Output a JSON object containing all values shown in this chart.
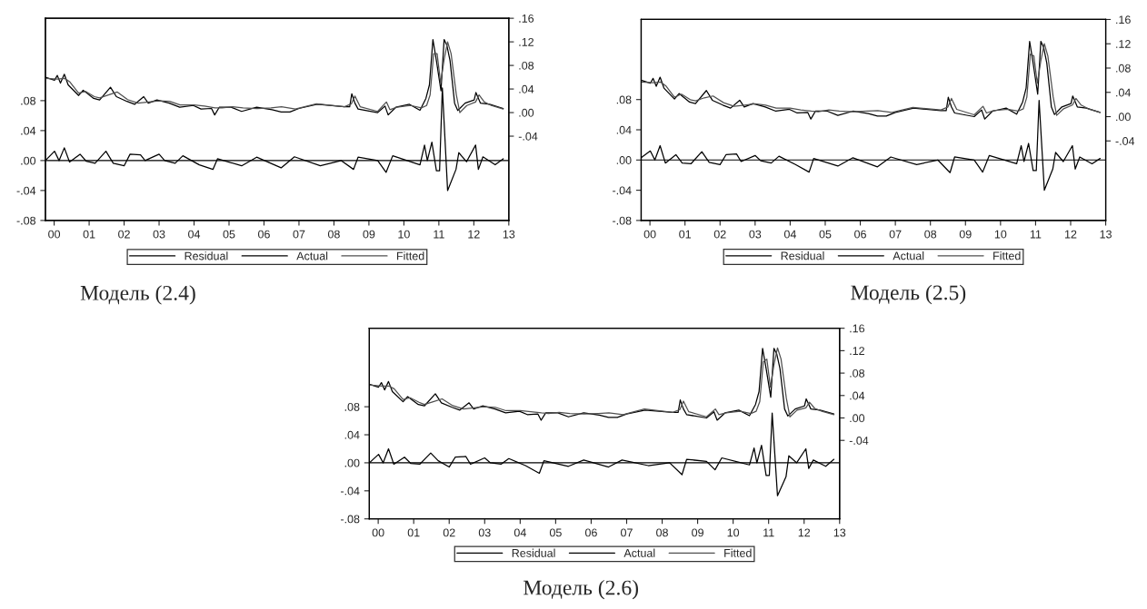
{
  "chart_data": [
    {
      "type": "line",
      "annotations": [
        "Модель (2.4)"
      ],
      "legend": "bottom",
      "grid": false,
      "marker": "none",
      "line_style": "solid",
      "xlim": [
        1999.75,
        2013.0
      ],
      "xticks": [
        {
          "value": 2000,
          "label": "00"
        },
        {
          "value": 2001,
          "label": "01"
        },
        {
          "value": 2002,
          "label": "02"
        },
        {
          "value": 2003,
          "label": "03"
        },
        {
          "value": 2004,
          "label": "04"
        },
        {
          "value": 2005,
          "label": "05"
        },
        {
          "value": 2006,
          "label": "06"
        },
        {
          "value": 2007,
          "label": "07"
        },
        {
          "value": 2008,
          "label": "08"
        },
        {
          "value": 2009,
          "label": "09"
        },
        {
          "value": 2010,
          "label": "10"
        },
        {
          "value": 2011,
          "label": "11"
        },
        {
          "value": 2012,
          "label": "12"
        },
        {
          "value": 2013,
          "label": "13"
        }
      ],
      "ylim": [
        -0.08,
        0.19
      ],
      "yticks": [
        {
          "value": -0.08,
          "label": "-.08"
        },
        {
          "value": -0.04,
          "label": "-.04"
        },
        {
          "value": 0,
          "label": ".00"
        },
        {
          "value": 0.04,
          "label": ".04"
        },
        {
          "value": 0.08,
          "label": ".08"
        }
      ],
      "y2lim": [
        -0.183,
        0.16
      ],
      "y2ticks": [
        {
          "value": -0.04,
          "label": "-.04"
        },
        {
          "value": 0,
          "label": ".00"
        },
        {
          "value": 0.04,
          "label": ".04"
        },
        {
          "value": 0.08,
          "label": ".08"
        },
        {
          "value": 0.12,
          "label": ".12"
        },
        {
          "value": 0.16,
          "label": ".16"
        }
      ],
      "ref_lines": [
        {
          "axis": "y",
          "value": 0
        }
      ],
      "series": [
        {
          "name": "Residual",
          "color": "#000000",
          "axis": "y",
          "x": [
            1999.75,
            2000.01,
            2000.14,
            2000.29,
            2000.44,
            2000.74,
            2000.92,
            2001.17,
            2001.48,
            2001.69,
            2002.0,
            2002.17,
            2002.47,
            2002.6,
            2003.0,
            2003.16,
            2003.46,
            2003.68,
            2004.15,
            2004.54,
            2004.67,
            2005.36,
            2005.79,
            2006.49,
            2006.87,
            2007.61,
            2008.21,
            2008.56,
            2008.69,
            2009.25,
            2009.49,
            2009.68,
            2010.46,
            2010.59,
            2010.67,
            2010.8,
            2010.93,
            2011.02,
            2011.1,
            2011.25,
            2011.49,
            2011.57,
            2011.79,
            2012.05,
            2012.13,
            2012.26,
            2012.61,
            2012.84
          ],
          "values": [
            0.0,
            0.0125,
            0.0,
            0.017,
            -0.002,
            0.0085,
            -0.001,
            -0.0036,
            0.0125,
            -0.0036,
            -0.007,
            0.0085,
            0.0076,
            0.0,
            0.0085,
            0.0,
            -0.0036,
            0.0064,
            -0.0057,
            -0.0118,
            0.0024,
            -0.007,
            0.0045,
            -0.0097,
            0.005,
            -0.007,
            0.0,
            -0.0118,
            0.0045,
            0.0,
            -0.0158,
            0.0064,
            -0.0057,
            0.0206,
            0.0,
            0.0246,
            -0.0137,
            -0.0137,
            0.097,
            -0.04,
            -0.0118,
            0.0105,
            -0.0016,
            0.0206,
            -0.0118,
            0.005,
            -0.0057,
            0.0024
          ]
        },
        {
          "name": "Actual",
          "color": "#000000",
          "axis": "y2",
          "x": [
            1999.75,
            2000.01,
            2000.09,
            2000.18,
            2000.29,
            2000.4,
            2000.7,
            2000.83,
            2001.13,
            2001.3,
            2001.61,
            2001.78,
            2002.08,
            2002.3,
            2002.56,
            2002.69,
            2002.94,
            2003.29,
            2003.59,
            2003.98,
            2004.2,
            2004.5,
            2004.59,
            2004.72,
            2005.06,
            2005.36,
            2005.79,
            2006.23,
            2006.49,
            2006.74,
            2007.0,
            2007.52,
            2008.3,
            2008.45,
            2008.51,
            2008.6,
            2008.69,
            2009.25,
            2009.46,
            2009.55,
            2009.77,
            2010.16,
            2010.46,
            2010.63,
            2010.73,
            2010.83,
            2010.93,
            2011.06,
            2011.15,
            2011.23,
            2011.32,
            2011.45,
            2011.54,
            2011.75,
            2012.01,
            2012.06,
            2012.19,
            2012.45,
            2012.84
          ],
          "values": [
            0.06,
            0.055,
            0.063,
            0.05,
            0.065,
            0.047,
            0.029,
            0.038,
            0.024,
            0.0215,
            0.043,
            0.027,
            0.019,
            0.014,
            0.027,
            0.016,
            0.0215,
            0.016,
            0.009,
            0.012,
            0.006,
            0.007,
            -0.004,
            0.009,
            0.009,
            0.002,
            0.009,
            0.005,
            0.001,
            0.001,
            0.007,
            0.014,
            0.01,
            0.01,
            0.032,
            0.016,
            0.006,
            0.0,
            0.011,
            -0.004,
            0.009,
            0.014,
            0.004,
            0.024,
            0.047,
            0.124,
            0.088,
            0.037,
            0.124,
            0.114,
            0.088,
            0.016,
            0.0035,
            0.016,
            0.0215,
            0.034,
            0.016,
            0.014,
            0.007
          ]
        },
        {
          "name": "Fitted",
          "color": "#505050",
          "axis": "y2",
          "x": [
            1999.75,
            2000.1,
            2000.3,
            2000.45,
            2000.7,
            2000.9,
            2001.15,
            2001.3,
            2001.55,
            2001.8,
            2002.1,
            2002.4,
            2002.7,
            2003.0,
            2003.3,
            2003.6,
            2004.0,
            2004.3,
            2004.6,
            2004.8,
            2005.1,
            2005.4,
            2005.8,
            2006.2,
            2006.5,
            2006.9,
            2007.5,
            2008.3,
            2008.5,
            2008.6,
            2008.75,
            2009.25,
            2009.5,
            2009.6,
            2009.8,
            2010.2,
            2010.5,
            2010.65,
            2010.75,
            2010.85,
            2010.95,
            2011.05,
            2011.15,
            2011.25,
            2011.35,
            2011.5,
            2011.6,
            2011.8,
            2012.05,
            2012.15,
            2012.3,
            2012.5,
            2012.84
          ],
          "values": [
            0.058,
            0.057,
            0.058,
            0.052,
            0.033,
            0.036,
            0.027,
            0.025,
            0.03,
            0.035,
            0.022,
            0.016,
            0.018,
            0.02,
            0.019,
            0.013,
            0.013,
            0.011,
            0.008,
            0.008,
            0.01,
            0.008,
            0.007,
            0.008,
            0.01,
            0.006,
            0.015,
            0.01,
            0.015,
            0.028,
            0.01,
            0.002,
            0.018,
            0.005,
            0.009,
            0.012,
            0.008,
            0.012,
            0.03,
            0.1,
            0.1,
            0.05,
            0.09,
            0.12,
            0.1,
            0.03,
            0.0,
            0.012,
            0.018,
            0.03,
            0.018,
            0.012,
            0.006
          ]
        }
      ]
    },
    {
      "type": "line",
      "annotations": [
        "Модель (2.5)"
      ],
      "legend": "bottom",
      "grid": false,
      "marker": "none",
      "line_style": "solid",
      "xlim": [
        1999.75,
        2013.0
      ],
      "xticks": [
        {
          "value": 2000,
          "label": "00"
        },
        {
          "value": 2001,
          "label": "01"
        },
        {
          "value": 2002,
          "label": "02"
        },
        {
          "value": 2003,
          "label": "03"
        },
        {
          "value": 2004,
          "label": "04"
        },
        {
          "value": 2005,
          "label": "05"
        },
        {
          "value": 2006,
          "label": "06"
        },
        {
          "value": 2007,
          "label": "07"
        },
        {
          "value": 2008,
          "label": "08"
        },
        {
          "value": 2009,
          "label": "09"
        },
        {
          "value": 2010,
          "label": "10"
        },
        {
          "value": 2011,
          "label": "11"
        },
        {
          "value": 2012,
          "label": "12"
        },
        {
          "value": 2013,
          "label": "13"
        }
      ],
      "ylim": [
        -0.08,
        0.186
      ],
      "yticks": [
        {
          "value": -0.08,
          "label": "-.08"
        },
        {
          "value": -0.04,
          "label": "-.04"
        },
        {
          "value": 0,
          "label": ".00"
        },
        {
          "value": 0.04,
          "label": ".04"
        },
        {
          "value": 0.08,
          "label": ".08"
        }
      ],
      "y2lim": [
        -0.171,
        0.16
      ],
      "y2ticks": [
        {
          "value": -0.04,
          "label": "-.04"
        },
        {
          "value": 0,
          "label": ".00"
        },
        {
          "value": 0.04,
          "label": ".04"
        },
        {
          "value": 0.08,
          "label": ".08"
        },
        {
          "value": 0.12,
          "label": ".12"
        },
        {
          "value": 0.16,
          "label": ".16"
        }
      ],
      "ref_lines": [
        {
          "axis": "y",
          "value": 0
        }
      ],
      "series": [
        {
          "name": "Residual",
          "color": "#000000",
          "axis": "y",
          "x": [
            1999.75,
            2000.01,
            2000.14,
            2000.29,
            2000.44,
            2000.74,
            2000.92,
            2001.17,
            2001.48,
            2001.69,
            2002.0,
            2002.17,
            2002.47,
            2002.6,
            2003.0,
            2003.16,
            2003.46,
            2003.68,
            2004.15,
            2004.54,
            2004.67,
            2005.36,
            2005.79,
            2006.49,
            2006.87,
            2007.61,
            2008.21,
            2008.56,
            2008.69,
            2009.25,
            2009.49,
            2009.68,
            2010.46,
            2010.59,
            2010.67,
            2010.8,
            2010.93,
            2011.02,
            2011.1,
            2011.25,
            2011.49,
            2011.57,
            2011.79,
            2012.05,
            2012.13,
            2012.26,
            2012.61,
            2012.84
          ],
          "values": [
            0.003,
            0.012,
            0.0,
            0.019,
            -0.004,
            0.007,
            -0.004,
            -0.005,
            0.011,
            -0.003,
            -0.006,
            0.007,
            0.008,
            -0.002,
            0.006,
            -0.001,
            -0.004,
            0.005,
            -0.006,
            -0.016,
            0.002,
            -0.008,
            0.003,
            -0.009,
            0.004,
            -0.006,
            0.0,
            -0.0167,
            0.004,
            0.0,
            -0.016,
            0.006,
            -0.005,
            0.019,
            -0.002,
            0.022,
            -0.014,
            -0.014,
            0.079,
            -0.04,
            -0.012,
            0.01,
            -0.002,
            0.019,
            -0.012,
            0.004,
            -0.005,
            0.002
          ]
        },
        {
          "name": "Actual",
          "color": "#000000",
          "axis": "y2",
          "x": [
            1999.75,
            2000.01,
            2000.09,
            2000.18,
            2000.29,
            2000.4,
            2000.7,
            2000.83,
            2001.13,
            2001.3,
            2001.61,
            2001.78,
            2002.08,
            2002.3,
            2002.56,
            2002.69,
            2002.94,
            2003.29,
            2003.59,
            2003.98,
            2004.2,
            2004.5,
            2004.59,
            2004.72,
            2005.06,
            2005.36,
            2005.79,
            2006.23,
            2006.49,
            2006.74,
            2007.0,
            2007.52,
            2008.3,
            2008.45,
            2008.51,
            2008.6,
            2008.69,
            2009.25,
            2009.46,
            2009.55,
            2009.77,
            2010.16,
            2010.46,
            2010.63,
            2010.73,
            2010.83,
            2010.93,
            2011.06,
            2011.15,
            2011.23,
            2011.32,
            2011.45,
            2011.54,
            2011.75,
            2012.01,
            2012.06,
            2012.19,
            2012.45,
            2012.84
          ],
          "values": [
            0.06,
            0.055,
            0.063,
            0.05,
            0.065,
            0.047,
            0.029,
            0.038,
            0.024,
            0.0215,
            0.043,
            0.027,
            0.019,
            0.014,
            0.027,
            0.016,
            0.0215,
            0.016,
            0.009,
            0.012,
            0.006,
            0.007,
            -0.004,
            0.009,
            0.009,
            0.002,
            0.009,
            0.005,
            0.001,
            0.001,
            0.007,
            0.014,
            0.01,
            0.01,
            0.032,
            0.016,
            0.006,
            0.0,
            0.011,
            -0.004,
            0.009,
            0.014,
            0.004,
            0.024,
            0.047,
            0.124,
            0.088,
            0.037,
            0.124,
            0.114,
            0.088,
            0.016,
            0.0035,
            0.016,
            0.0215,
            0.034,
            0.016,
            0.014,
            0.007
          ]
        },
        {
          "name": "Fitted",
          "color": "#505050",
          "axis": "y2",
          "x": [
            1999.75,
            2000.1,
            2000.3,
            2000.45,
            2000.7,
            2000.9,
            2001.15,
            2001.3,
            2001.55,
            2001.8,
            2002.1,
            2002.4,
            2002.7,
            2003.0,
            2003.3,
            2003.6,
            2004.0,
            2004.3,
            2004.6,
            2004.8,
            2005.1,
            2005.4,
            2005.8,
            2006.2,
            2006.5,
            2006.9,
            2007.5,
            2008.3,
            2008.5,
            2008.6,
            2008.75,
            2009.25,
            2009.5,
            2009.6,
            2009.8,
            2010.2,
            2010.5,
            2010.65,
            2010.75,
            2010.85,
            2010.95,
            2011.05,
            2011.15,
            2011.25,
            2011.35,
            2011.5,
            2011.6,
            2011.8,
            2012.05,
            2012.15,
            2012.3,
            2012.5,
            2012.84
          ],
          "values": [
            0.057,
            0.056,
            0.057,
            0.051,
            0.032,
            0.037,
            0.028,
            0.026,
            0.031,
            0.034,
            0.023,
            0.017,
            0.019,
            0.021,
            0.019,
            0.014,
            0.014,
            0.011,
            0.009,
            0.008,
            0.011,
            0.009,
            0.008,
            0.009,
            0.01,
            0.007,
            0.015,
            0.011,
            0.016,
            0.03,
            0.012,
            0.003,
            0.017,
            0.006,
            0.01,
            0.012,
            0.009,
            0.013,
            0.032,
            0.103,
            0.1,
            0.055,
            0.092,
            0.12,
            0.1,
            0.033,
            0.002,
            0.013,
            0.019,
            0.03,
            0.019,
            0.013,
            0.007
          ]
        }
      ]
    },
    {
      "type": "line",
      "annotations": [
        "Модель (2.6)"
      ],
      "legend": "bottom",
      "grid": false,
      "marker": "none",
      "line_style": "solid",
      "xlim": [
        1999.75,
        2013.0
      ],
      "xticks": [
        {
          "value": 2000,
          "label": "00"
        },
        {
          "value": 2001,
          "label": "01"
        },
        {
          "value": 2002,
          "label": "02"
        },
        {
          "value": 2003,
          "label": "03"
        },
        {
          "value": 2004,
          "label": "04"
        },
        {
          "value": 2005,
          "label": "05"
        },
        {
          "value": 2006,
          "label": "06"
        },
        {
          "value": 2007,
          "label": "07"
        },
        {
          "value": 2008,
          "label": "08"
        },
        {
          "value": 2009,
          "label": "09"
        },
        {
          "value": 2010,
          "label": "10"
        },
        {
          "value": 2011,
          "label": "11"
        },
        {
          "value": 2012,
          "label": "12"
        },
        {
          "value": 2013,
          "label": "13"
        }
      ],
      "ylim": [
        -0.08,
        0.192
      ],
      "yticks": [
        {
          "value": -0.08,
          "label": "-.08"
        },
        {
          "value": -0.04,
          "label": "-.04"
        },
        {
          "value": 0,
          "label": ".00"
        },
        {
          "value": 0.04,
          "label": ".04"
        },
        {
          "value": 0.08,
          "label": ".08"
        }
      ],
      "y2lim": [
        -0.18,
        0.16
      ],
      "y2ticks": [
        {
          "value": -0.04,
          "label": "-.04"
        },
        {
          "value": 0,
          "label": ".00"
        },
        {
          "value": 0.04,
          "label": ".04"
        },
        {
          "value": 0.08,
          "label": ".08"
        },
        {
          "value": 0.12,
          "label": ".12"
        },
        {
          "value": 0.16,
          "label": ".16"
        }
      ],
      "ref_lines": [
        {
          "axis": "y",
          "value": 0
        }
      ],
      "series": [
        {
          "name": "Residual",
          "color": "#000000",
          "axis": "y",
          "x": [
            1999.75,
            2000.01,
            2000.14,
            2000.29,
            2000.44,
            2000.74,
            2000.92,
            2001.17,
            2001.48,
            2001.69,
            2002.0,
            2002.17,
            2002.47,
            2002.6,
            2003.0,
            2003.16,
            2003.46,
            2003.68,
            2004.15,
            2004.54,
            2004.67,
            2005.36,
            2005.79,
            2006.49,
            2006.87,
            2007.61,
            2008.21,
            2008.56,
            2008.69,
            2009.25,
            2009.49,
            2009.68,
            2010.46,
            2010.59,
            2010.67,
            2010.8,
            2010.93,
            2011.02,
            2011.1,
            2011.25,
            2011.49,
            2011.57,
            2011.79,
            2012.05,
            2012.13,
            2012.26,
            2012.61,
            2012.84
          ],
          "values": [
            0.0,
            0.012,
            0.0,
            0.02,
            -0.002,
            0.008,
            -0.001,
            -0.002,
            0.014,
            0.003,
            -0.006,
            0.008,
            0.009,
            -0.002,
            0.007,
            0.0,
            -0.002,
            0.006,
            -0.004,
            -0.015,
            0.003,
            -0.005,
            0.004,
            -0.006,
            0.004,
            -0.004,
            0.0,
            -0.017,
            0.005,
            0.002,
            -0.01,
            0.007,
            -0.003,
            0.021,
            0.0,
            0.025,
            -0.018,
            -0.018,
            0.071,
            -0.047,
            -0.02,
            0.01,
            0.0,
            0.02,
            -0.008,
            0.004,
            -0.005,
            0.005
          ]
        },
        {
          "name": "Actual",
          "color": "#000000",
          "axis": "y2",
          "x": [
            1999.75,
            2000.01,
            2000.09,
            2000.18,
            2000.29,
            2000.4,
            2000.7,
            2000.83,
            2001.13,
            2001.3,
            2001.61,
            2001.78,
            2002.08,
            2002.3,
            2002.56,
            2002.69,
            2002.94,
            2003.29,
            2003.59,
            2003.98,
            2004.2,
            2004.5,
            2004.59,
            2004.72,
            2005.06,
            2005.36,
            2005.79,
            2006.23,
            2006.49,
            2006.74,
            2007.0,
            2007.52,
            2008.3,
            2008.45,
            2008.51,
            2008.6,
            2008.69,
            2009.25,
            2009.46,
            2009.55,
            2009.77,
            2010.16,
            2010.46,
            2010.63,
            2010.73,
            2010.83,
            2010.93,
            2011.06,
            2011.15,
            2011.23,
            2011.32,
            2011.45,
            2011.54,
            2011.75,
            2012.01,
            2012.06,
            2012.19,
            2012.45,
            2012.84
          ],
          "values": [
            0.06,
            0.055,
            0.063,
            0.05,
            0.065,
            0.047,
            0.029,
            0.038,
            0.024,
            0.0215,
            0.043,
            0.027,
            0.019,
            0.014,
            0.027,
            0.016,
            0.0215,
            0.016,
            0.009,
            0.012,
            0.006,
            0.007,
            -0.004,
            0.009,
            0.009,
            0.002,
            0.009,
            0.005,
            0.001,
            0.001,
            0.007,
            0.014,
            0.01,
            0.01,
            0.032,
            0.016,
            0.006,
            0.0,
            0.011,
            -0.004,
            0.009,
            0.014,
            0.004,
            0.024,
            0.047,
            0.124,
            0.088,
            0.037,
            0.124,
            0.114,
            0.088,
            0.016,
            0.0035,
            0.016,
            0.0215,
            0.034,
            0.016,
            0.014,
            0.007
          ]
        },
        {
          "name": "Fitted",
          "color": "#505050",
          "axis": "y2",
          "x": [
            1999.75,
            2000.1,
            2000.3,
            2000.45,
            2000.7,
            2000.9,
            2001.15,
            2001.3,
            2001.55,
            2001.8,
            2002.1,
            2002.4,
            2002.7,
            2003.0,
            2003.3,
            2003.6,
            2004.0,
            2004.3,
            2004.6,
            2004.8,
            2005.1,
            2005.4,
            2005.8,
            2006.2,
            2006.5,
            2006.9,
            2007.5,
            2008.3,
            2008.5,
            2008.6,
            2008.75,
            2009.25,
            2009.5,
            2009.6,
            2009.8,
            2010.2,
            2010.5,
            2010.65,
            2010.75,
            2010.85,
            2010.95,
            2011.05,
            2011.15,
            2011.25,
            2011.35,
            2011.5,
            2011.6,
            2011.8,
            2012.05,
            2012.15,
            2012.3,
            2012.5,
            2012.84
          ],
          "values": [
            0.059,
            0.057,
            0.057,
            0.052,
            0.033,
            0.036,
            0.028,
            0.024,
            0.029,
            0.034,
            0.022,
            0.016,
            0.018,
            0.02,
            0.019,
            0.013,
            0.013,
            0.011,
            0.009,
            0.008,
            0.01,
            0.008,
            0.007,
            0.008,
            0.009,
            0.006,
            0.016,
            0.01,
            0.015,
            0.03,
            0.011,
            0.002,
            0.016,
            0.006,
            0.009,
            0.012,
            0.008,
            0.012,
            0.029,
            0.1,
            0.105,
            0.055,
            0.095,
            0.125,
            0.105,
            0.035,
            0.002,
            0.014,
            0.018,
            0.028,
            0.017,
            0.012,
            0.006
          ]
        }
      ]
    }
  ]
}
